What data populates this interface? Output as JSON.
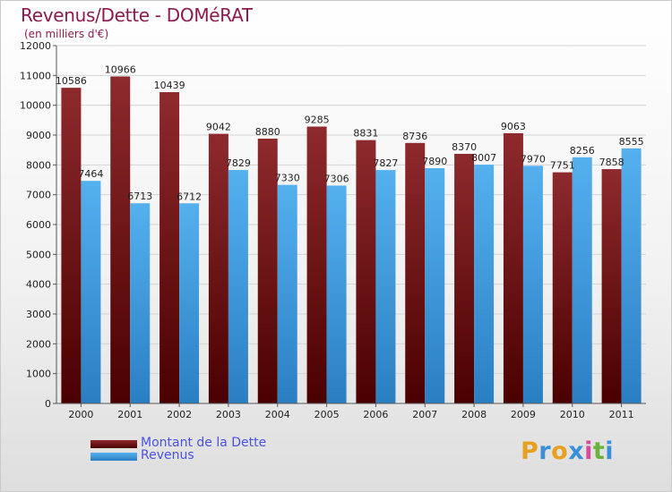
{
  "title": "Revenus/Dette - DOMéRAT",
  "subtitle": "(en milliers d'€)",
  "colors": {
    "dette": "#7a1e22",
    "revenus": "#3c9ee0",
    "title": "#8b1a4f",
    "legend_text": "#4a52e0"
  },
  "logo": {
    "letters": [
      "P",
      "r",
      "o",
      "x",
      "i",
      "t",
      "i"
    ],
    "colors": [
      "#e8a021",
      "#3b8fd6",
      "#e8a021",
      "#3b8fd6",
      "#d84b9c",
      "#6ab23b",
      "#3b8fd6"
    ]
  },
  "chart_data": {
    "type": "bar",
    "title": "Revenus/Dette - DOMéRAT",
    "subtitle": "(en milliers d'€)",
    "categories": [
      "2000",
      "2001",
      "2002",
      "2003",
      "2004",
      "2005",
      "2006",
      "2007",
      "2008",
      "2009",
      "2010",
      "2011"
    ],
    "series": [
      {
        "name": "Montant de la Dette",
        "values": [
          10586,
          10966,
          10439,
          9042,
          8880,
          9285,
          8831,
          8736,
          8370,
          9063,
          7751,
          7858
        ]
      },
      {
        "name": "Revenus",
        "values": [
          7464,
          6713,
          6712,
          7829,
          7330,
          7306,
          7827,
          7890,
          8007,
          7970,
          8256,
          8555
        ]
      }
    ],
    "data_labels": [
      [
        "10586",
        "10966",
        "10439",
        "9042",
        "8880",
        "9285",
        "8831",
        "8736",
        "8370",
        "9063",
        "7751",
        "7858"
      ],
      [
        "7464",
        "6713",
        "6712",
        "7829",
        "7330",
        "7306",
        "7827",
        "7890",
        "8007",
        "7970",
        "8256",
        "8555"
      ]
    ],
    "ylim": [
      0,
      12000
    ],
    "yticks": [
      "0",
      "1000",
      "2000",
      "3000",
      "4000",
      "5000",
      "6000",
      "7000",
      "8000",
      "9000",
      "10000",
      "11000",
      "12000"
    ],
    "grid": true,
    "legend": "bottom-left"
  }
}
